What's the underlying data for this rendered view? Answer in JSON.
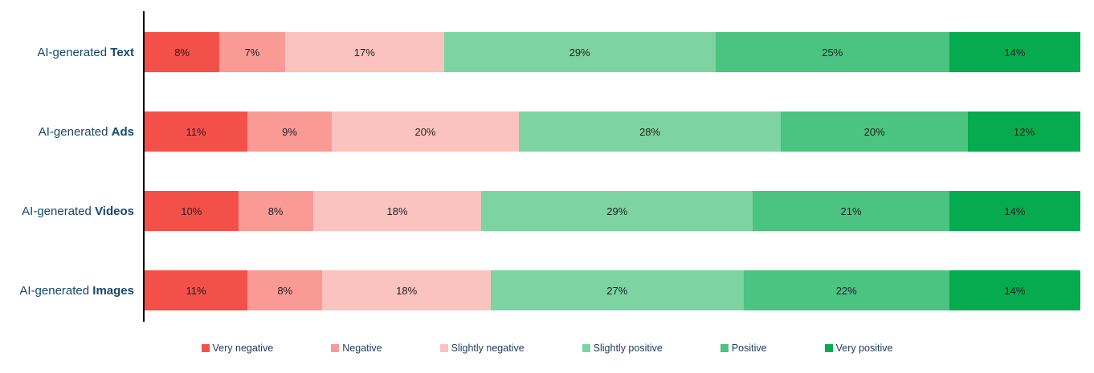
{
  "colors": {
    "axis": "#000000",
    "label_text": "#15486D",
    "segment_text": "#1F1F1F",
    "legend_text": "#1F3A5E",
    "page_bg": "#FFFFFF"
  },
  "chart_data": {
    "type": "bar",
    "orientation": "horizontal",
    "stacked": true,
    "value_suffix": "%",
    "xlim": [
      0,
      100
    ],
    "grid": false,
    "legend_position": "bottom",
    "categories": [
      {
        "regular": "AI-generated",
        "bold": "Text"
      },
      {
        "regular": "AI-generated",
        "bold": "Ads"
      },
      {
        "regular": "AI-generated",
        "bold": "Videos"
      },
      {
        "regular": "AI-generated",
        "bold": "Images"
      }
    ],
    "series": [
      {
        "name": "Very negative",
        "color": "#F4504A",
        "values": [
          8,
          11,
          10,
          11
        ]
      },
      {
        "name": "Negative",
        "color": "#FA9A95",
        "values": [
          7,
          9,
          8,
          8
        ]
      },
      {
        "name": "Slightly negative",
        "color": "#FBC3BF",
        "values": [
          17,
          20,
          18,
          18
        ]
      },
      {
        "name": "Slightly positive",
        "color": "#7DD4A2",
        "values": [
          29,
          28,
          29,
          27
        ]
      },
      {
        "name": "Positive",
        "color": "#4BC381",
        "values": [
          25,
          20,
          21,
          22
        ]
      },
      {
        "name": "Very positive",
        "color": "#07AB4F",
        "values": [
          14,
          12,
          14,
          14
        ]
      }
    ],
    "totals_note": "each row sums to 100%"
  }
}
